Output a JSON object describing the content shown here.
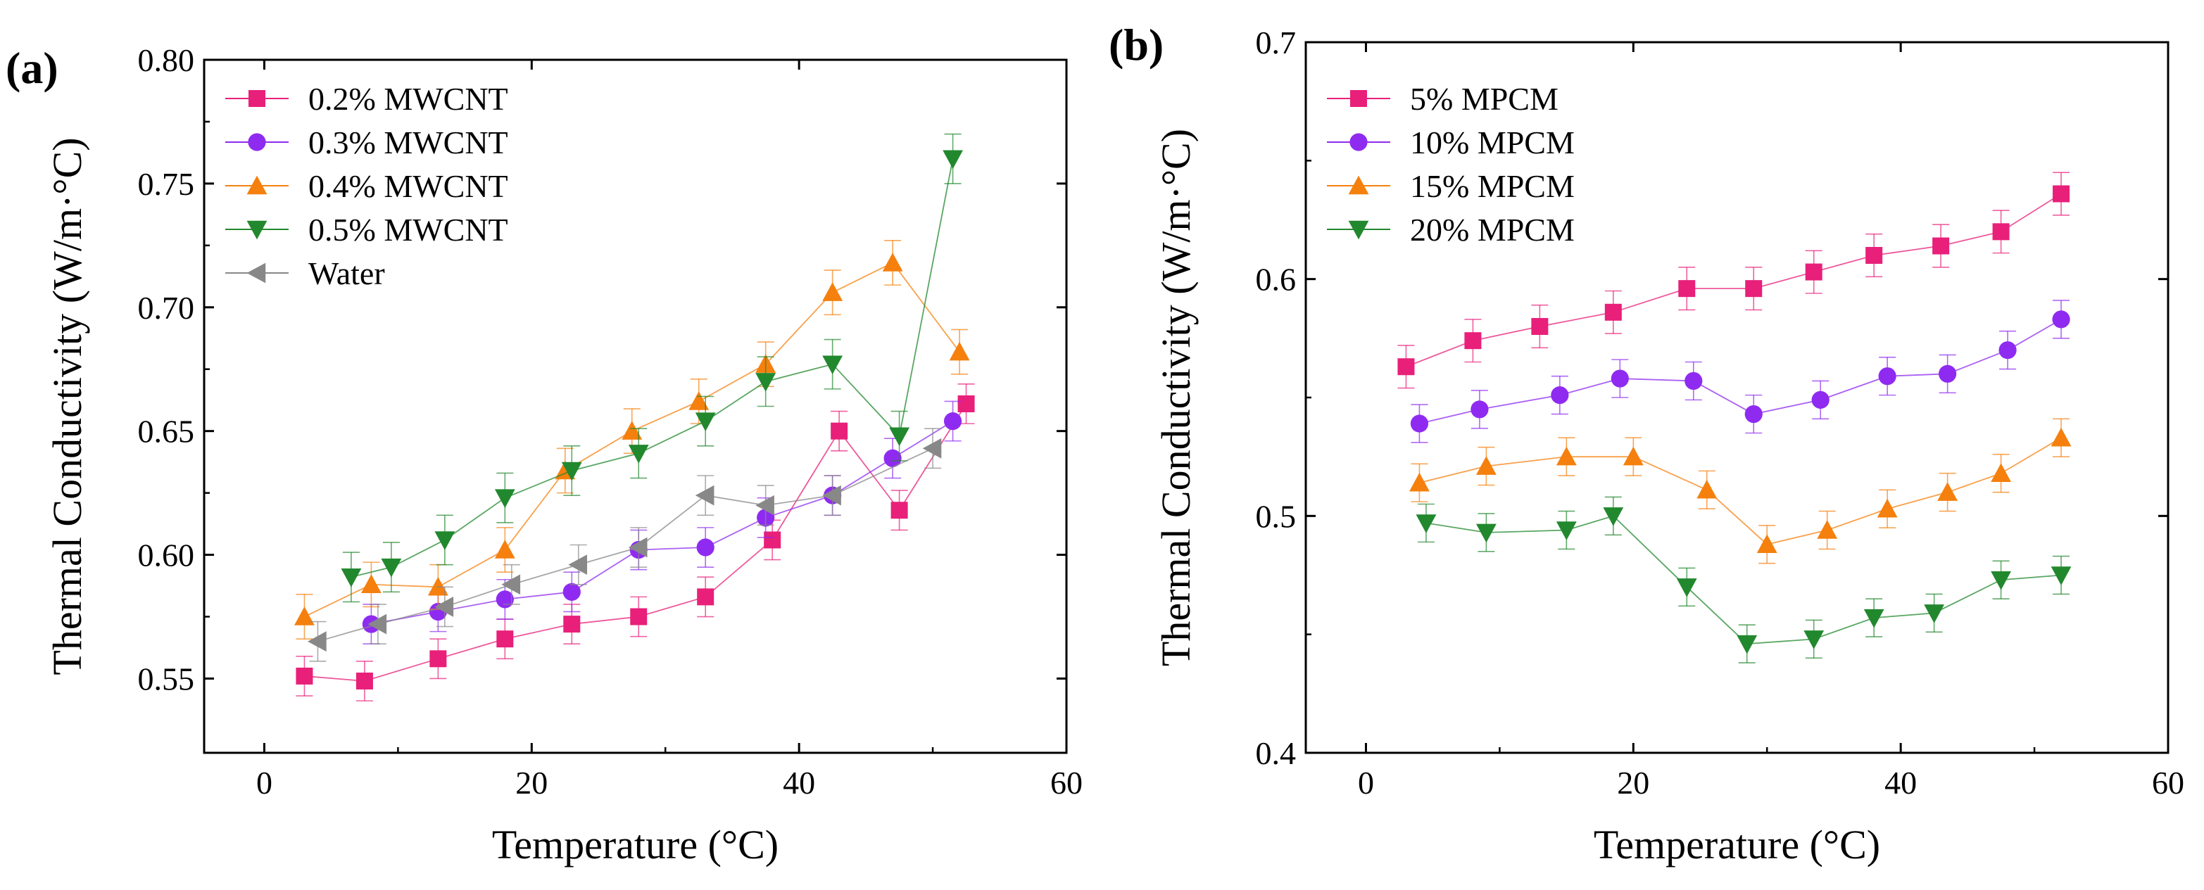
{
  "chart_data": [
    {
      "type": "scatter",
      "panel_label": "(a)",
      "xlabel": "Temperature (°C)",
      "ylabel": "Thermal Conductivity (W/m·°C)",
      "xlim": [
        -4.5,
        60
      ],
      "ylim": [
        0.52,
        0.8
      ],
      "xticks": [
        0,
        20,
        40,
        60
      ],
      "yticks": [
        0.55,
        0.6,
        0.65,
        0.7,
        0.75,
        0.8
      ],
      "xtick_labels": [
        "0",
        "20",
        "40",
        "60"
      ],
      "ytick_labels": [
        "0.55",
        "0.60",
        "0.65",
        "0.70",
        "0.75",
        "0.80"
      ],
      "legend_position": "top-left",
      "series": [
        {
          "name": "0.2% MWCNT",
          "marker": "square",
          "color": "#e8207a",
          "x": [
            3,
            7.5,
            13,
            18,
            23,
            28,
            33,
            38,
            43,
            47.5,
            52.5
          ],
          "y": [
            0.551,
            0.549,
            0.558,
            0.566,
            0.572,
            0.575,
            0.583,
            0.606,
            0.65,
            0.618,
            0.661
          ],
          "err": 0.008
        },
        {
          "name": "0.3% MWCNT",
          "marker": "circle",
          "color": "#8f2bf0",
          "x": [
            8,
            13,
            18,
            23,
            28,
            33,
            37.5,
            42.5,
            47,
            51.5
          ],
          "y": [
            0.572,
            0.577,
            0.582,
            0.585,
            0.602,
            0.603,
            0.615,
            0.624,
            0.639,
            0.654
          ],
          "err": 0.008
        },
        {
          "name": "0.4% MWCNT",
          "marker": "triangle-up",
          "color": "#f5800e",
          "x": [
            3,
            8,
            13,
            18,
            22.5,
            27.5,
            32.5,
            37.5,
            42.5,
            47,
            52
          ],
          "y": [
            0.575,
            0.588,
            0.587,
            0.602,
            0.634,
            0.65,
            0.662,
            0.677,
            0.706,
            0.718,
            0.682
          ],
          "err": 0.009
        },
        {
          "name": "0.5% MWCNT",
          "marker": "triangle-down",
          "color": "#22882e",
          "x": [
            6.5,
            9.5,
            13.5,
            18,
            23,
            28,
            33,
            37.5,
            42.5,
            47.5,
            51.5
          ],
          "y": [
            0.591,
            0.595,
            0.606,
            0.623,
            0.634,
            0.641,
            0.654,
            0.67,
            0.677,
            0.648,
            0.76
          ],
          "err": 0.01
        },
        {
          "name": "Water",
          "marker": "triangle-left",
          "color": "#888888",
          "x": [
            4,
            8.5,
            13.5,
            18.5,
            23.5,
            28,
            33,
            37.5,
            42.5,
            50
          ],
          "y": [
            0.565,
            0.572,
            0.579,
            0.588,
            0.596,
            0.603,
            0.624,
            0.62,
            0.624,
            0.643
          ],
          "err": 0.008
        }
      ]
    },
    {
      "type": "scatter",
      "panel_label": "(b)",
      "xlabel": "Temperature (°C)",
      "ylabel": "Thermal Conductivity (W/m·°C)",
      "xlim": [
        -4.5,
        60
      ],
      "ylim": [
        0.4,
        0.7
      ],
      "xticks": [
        0,
        20,
        40,
        60
      ],
      "yticks": [
        0.4,
        0.5,
        0.6,
        0.7
      ],
      "xtick_labels": [
        "0",
        "20",
        "40",
        "60"
      ],
      "ytick_labels": [
        "0.4",
        "0.5",
        "0.6",
        "0.7"
      ],
      "legend_position": "top-left",
      "series": [
        {
          "name": " 5% MPCM",
          "marker": "square",
          "color": "#e8207a",
          "x": [
            3,
            8,
            13,
            18.5,
            24,
            29,
            33.5,
            38,
            43,
            47.5,
            52
          ],
          "y": [
            0.563,
            0.574,
            0.58,
            0.586,
            0.596,
            0.596,
            0.603,
            0.61,
            0.614,
            0.62,
            0.636
          ],
          "err": 0.009
        },
        {
          "name": "10% MPCM",
          "marker": "circle",
          "color": "#8f2bf0",
          "x": [
            4,
            8.5,
            14.5,
            19,
            24.5,
            29,
            34,
            39,
            43.5,
            48,
            52
          ],
          "y": [
            0.539,
            0.545,
            0.551,
            0.558,
            0.557,
            0.543,
            0.549,
            0.559,
            0.56,
            0.57,
            0.583
          ],
          "err": 0.008
        },
        {
          "name": "15% MPCM",
          "marker": "triangle-up",
          "color": "#f5800e",
          "x": [
            4,
            9,
            15,
            20,
            25.5,
            30,
            34.5,
            39,
            43.5,
            47.5,
            52
          ],
          "y": [
            0.514,
            0.521,
            0.525,
            0.525,
            0.511,
            0.488,
            0.494,
            0.503,
            0.51,
            0.518,
            0.533
          ],
          "err": 0.008
        },
        {
          "name": "20% MPCM",
          "marker": "triangle-down",
          "color": "#22882e",
          "x": [
            4.5,
            9,
            15,
            18.5,
            24,
            28.5,
            33.5,
            38,
            42.5,
            47.5,
            52
          ],
          "y": [
            0.497,
            0.493,
            0.494,
            0.5,
            0.47,
            0.446,
            0.448,
            0.457,
            0.459,
            0.473,
            0.475
          ],
          "err": 0.008
        }
      ]
    }
  ]
}
